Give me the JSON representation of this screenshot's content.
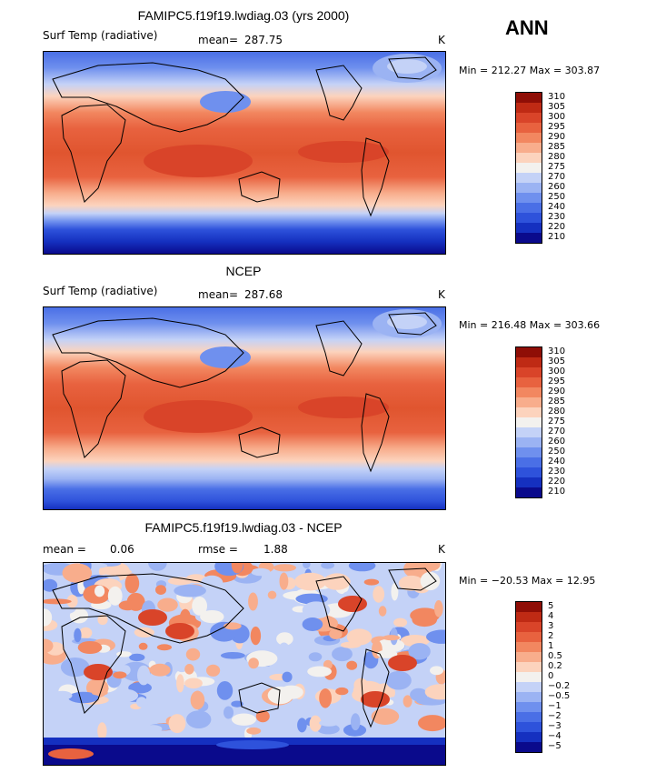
{
  "season": "ANN",
  "colors": {
    "absolute": [
      "#0a0a8c",
      "#1530c0",
      "#2e52db",
      "#4a6fe6",
      "#6f90ee",
      "#9bb3f3",
      "#c4d2f7",
      "#f3f1ee",
      "#fcd3bd",
      "#f8ad8c",
      "#f28760",
      "#e8623f",
      "#d94429",
      "#bf2a14",
      "#8f0e06"
    ],
    "diff": [
      "#0a0a8c",
      "#1530c0",
      "#2e52db",
      "#4a6fe6",
      "#6f90ee",
      "#9bb3f3",
      "#c4d2f7",
      "#f3f1ee",
      "#fcd3bd",
      "#f8ad8c",
      "#f28760",
      "#e8623f",
      "#d94429",
      "#bf2a14",
      "#8f0e06"
    ]
  },
  "chart_data": [
    {
      "type": "heatmap",
      "title": "FAMIPC5.f19f19.lwdiag.03 (yrs 2000)",
      "variable": "Surf Temp (radiative)",
      "mean_label": "mean=",
      "mean": "287.75",
      "units": "K",
      "min_max": "Min = 212.27 Max = 303.87",
      "levels": [
        "210",
        "220",
        "230",
        "240",
        "250",
        "260",
        "270",
        "275",
        "280",
        "285",
        "290",
        "295",
        "300",
        "305",
        "310"
      ]
    },
    {
      "type": "heatmap",
      "title": "NCEP",
      "variable": "Surf Temp (radiative)",
      "mean_label": "mean=",
      "mean": "287.68",
      "units": "K",
      "min_max": "Min = 216.48 Max = 303.66",
      "levels": [
        "210",
        "220",
        "230",
        "240",
        "250",
        "260",
        "270",
        "275",
        "280",
        "285",
        "290",
        "295",
        "300",
        "305",
        "310"
      ]
    },
    {
      "type": "heatmap",
      "title": "FAMIPC5.f19f19.lwdiag.03 - NCEP",
      "mean_label": "mean =",
      "mean": "0.06",
      "rmse_label": "rmse =",
      "rmse": "1.88",
      "units": "K",
      "min_max": "Min = −20.53 Max =   12.95",
      "levels": [
        "−5",
        "−4",
        "−3",
        "−2",
        "−1",
        "−0.5",
        "−0.2",
        "0",
        "0.2",
        "0.5",
        "1",
        "2",
        "3",
        "4",
        "5"
      ]
    }
  ]
}
